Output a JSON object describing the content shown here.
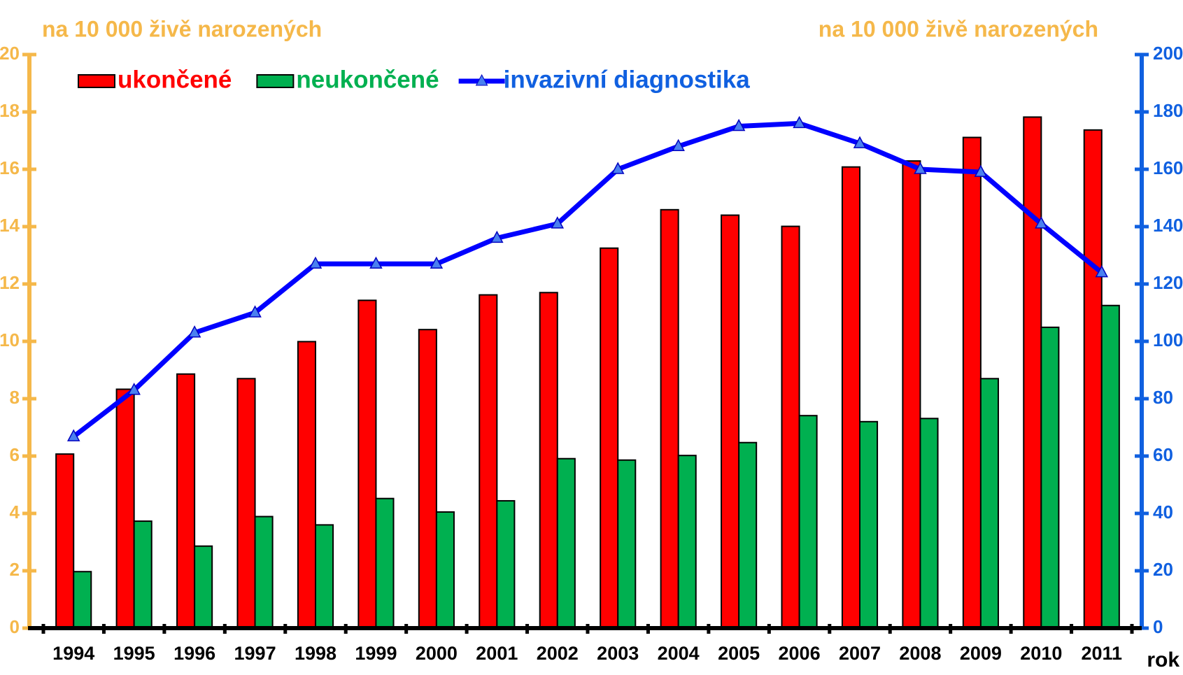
{
  "chart_data": {
    "type": "bar",
    "y_label": "na 10 000 živě narozených",
    "y2_label": "na 10 000 živě narozených",
    "x_label": "rok",
    "categories": [
      "1994",
      "1995",
      "1996",
      "1997",
      "1998",
      "1999",
      "2000",
      "2001",
      "2002",
      "2003",
      "2004",
      "2005",
      "2006",
      "2007",
      "2008",
      "2009",
      "2010",
      "2011"
    ],
    "series": [
      {
        "name": "ukončené",
        "color": "#ff0000",
        "type": "bar",
        "values": [
          6.07,
          8.33,
          8.86,
          8.7,
          9.99,
          11.43,
          10.41,
          11.62,
          11.7,
          13.25,
          14.59,
          14.4,
          14.01,
          16.08,
          16.29,
          17.11,
          17.82,
          17.37
        ]
      },
      {
        "name": "neukončené",
        "color": "#00b050",
        "type": "bar",
        "values": [
          1.97,
          3.73,
          2.86,
          3.89,
          3.6,
          4.52,
          4.05,
          4.44,
          5.91,
          5.86,
          6.02,
          6.47,
          7.41,
          7.2,
          7.31,
          8.7,
          10.49,
          11.25
        ]
      },
      {
        "name": "invazivní diagnostika",
        "color": "#0000ff",
        "type": "line",
        "axis": "y2",
        "values": [
          66.8,
          83,
          103,
          110,
          127,
          127,
          127,
          136,
          141,
          160,
          168,
          175,
          176,
          169,
          160,
          159,
          141,
          124
        ]
      }
    ],
    "ylim": [
      0,
      20
    ],
    "yticks": [
      0,
      2,
      4,
      6,
      8,
      10,
      12,
      14,
      16,
      18,
      20
    ],
    "y2lim": [
      0,
      200
    ],
    "y2ticks": [
      0,
      20,
      40,
      60,
      80,
      100,
      120,
      140,
      160,
      180,
      200
    ],
    "legend": "upper left",
    "y_color": "#f5b84a",
    "y2_color": "#1060e0"
  }
}
